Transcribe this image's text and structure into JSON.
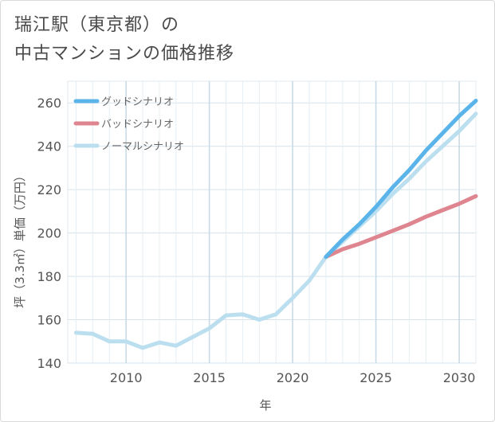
{
  "chart_data": {
    "type": "line",
    "title_lines": [
      "瑞江駅（東京都）の",
      "中古マンションの価格推移"
    ],
    "xlabel": "年",
    "ylabel": "坪（3.3㎡）単価（万円）",
    "xlim": [
      2006.5,
      2031
    ],
    "ylim": [
      140,
      270
    ],
    "x_ticks": [
      2010,
      2015,
      2020,
      2025,
      2030
    ],
    "y_ticks": [
      140,
      160,
      180,
      200,
      220,
      240,
      260
    ],
    "grid": true,
    "legend_position": "top-left",
    "series": [
      {
        "name": "グッドシナリオ",
        "color": "#5ab4ea",
        "x": [
          2022,
          2023,
          2024,
          2025,
          2026,
          2027,
          2028,
          2029,
          2030,
          2031
        ],
        "values": [
          189,
          197,
          204,
          212,
          221,
          229,
          238,
          246,
          254,
          261
        ]
      },
      {
        "name": "バッドシナリオ",
        "color": "#de858f",
        "x": [
          2022,
          2023,
          2024,
          2025,
          2026,
          2027,
          2028,
          2029,
          2030,
          2031
        ],
        "values": [
          189,
          192.5,
          195,
          198,
          201,
          204,
          207.5,
          210.5,
          213.5,
          217
        ]
      },
      {
        "name": "ノーマルシナリオ",
        "color": "#bcdff0",
        "x": [
          2007,
          2008,
          2009,
          2010,
          2011,
          2012,
          2013,
          2014,
          2015,
          2016,
          2017,
          2018,
          2019,
          2020,
          2021,
          2022,
          2023,
          2024,
          2025,
          2026,
          2027,
          2028,
          2029,
          2030,
          2031
        ],
        "values": [
          154,
          153.5,
          150,
          150,
          147,
          149.5,
          148,
          152,
          156,
          162,
          162.5,
          160,
          162.5,
          170,
          178,
          189,
          196,
          203,
          210,
          218,
          225,
          233,
          240,
          247,
          255
        ]
      }
    ]
  }
}
